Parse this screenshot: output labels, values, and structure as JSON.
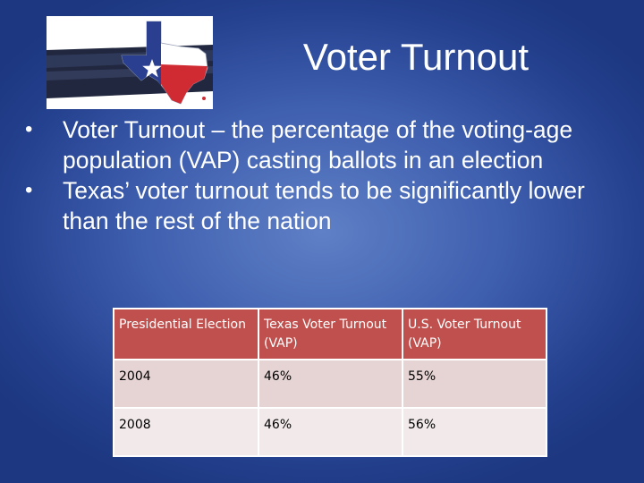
{
  "slide": {
    "title": "Voter Turnout",
    "bullets": [
      "Voter Turnout – the percentage of the voting-age population (VAP) casting ballots in an election",
      "Texas’ voter turnout tends to be significantly lower than the rest of the nation"
    ],
    "bullet_symbol": "•",
    "logo_icon": "texas-flag-map-icon",
    "colors": {
      "background": "#3f5faf",
      "title_text": "#ffffff",
      "table_header": "#c0504d",
      "table_row_a": "#e6d3d3",
      "table_row_b": "#f2eaea"
    }
  },
  "table": {
    "headers": [
      "Presidential Election",
      "Texas Voter Turnout (VAP)",
      "U.S. Voter Turnout (VAP)"
    ],
    "rows": [
      [
        "2004",
        "46%",
        "55%"
      ],
      [
        "2008",
        "46%",
        "56%"
      ]
    ]
  }
}
